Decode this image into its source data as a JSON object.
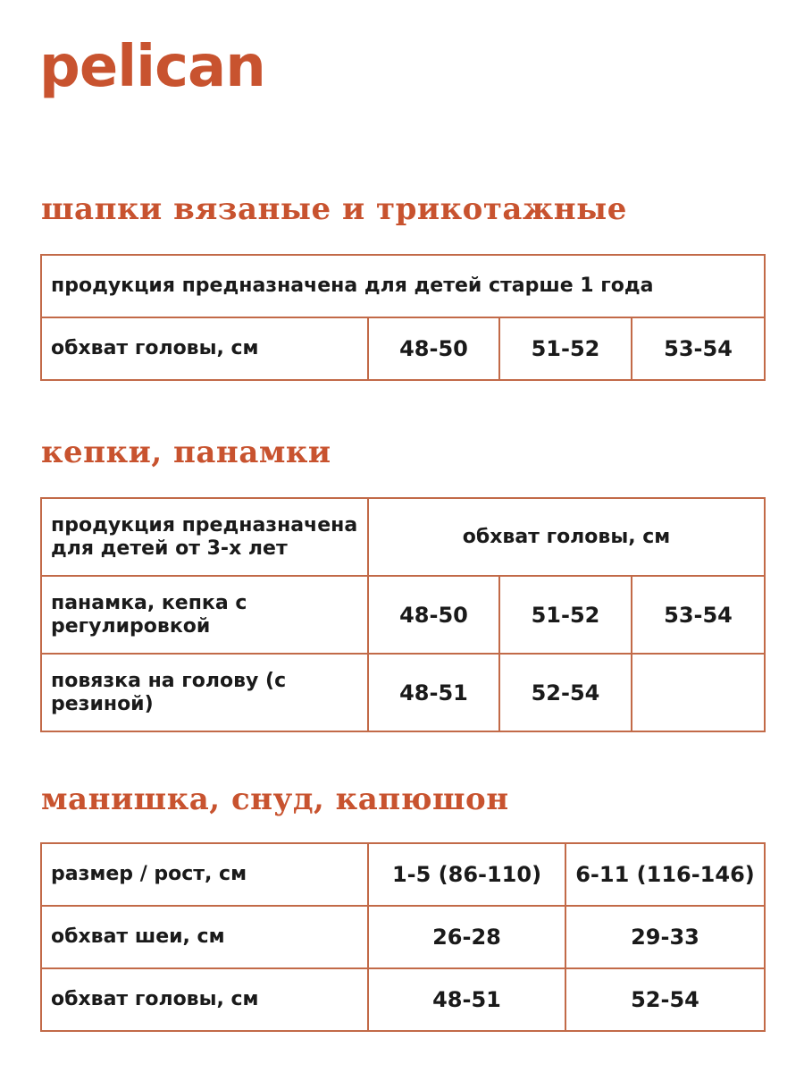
{
  "brand": {
    "logo": "pelican",
    "color": "#c8532f"
  },
  "sections": [
    {
      "title": "шапки вязаные и трикотажные",
      "note": "продукция предназначена для детей старше 1 года",
      "row": {
        "label": "обхват головы, см",
        "values": [
          "48-50",
          "51-52",
          "53-54"
        ]
      }
    },
    {
      "title": "кепки, панамки",
      "header_left": "продукция предназначена для детей от 3-х лет",
      "header_right": "обхват головы, см",
      "rows": [
        {
          "label": "панамка, кепка с регулировкой",
          "values": [
            "48-50",
            "51-52",
            "53-54"
          ]
        },
        {
          "label": "повязка на голову (с резиной)",
          "values": [
            "48-51",
            "52-54",
            ""
          ]
        }
      ]
    },
    {
      "title": "манишка, снуд, капюшон",
      "rows": [
        {
          "label": "размер / рост, см",
          "values": [
            "1-5 (86-110)",
            "6-11 (116-146)"
          ]
        },
        {
          "label": "обхват шеи, см",
          "values": [
            "26-28",
            "29-33"
          ]
        },
        {
          "label": "обхват головы, см",
          "values": [
            "48-51",
            "52-54"
          ]
        }
      ]
    }
  ]
}
